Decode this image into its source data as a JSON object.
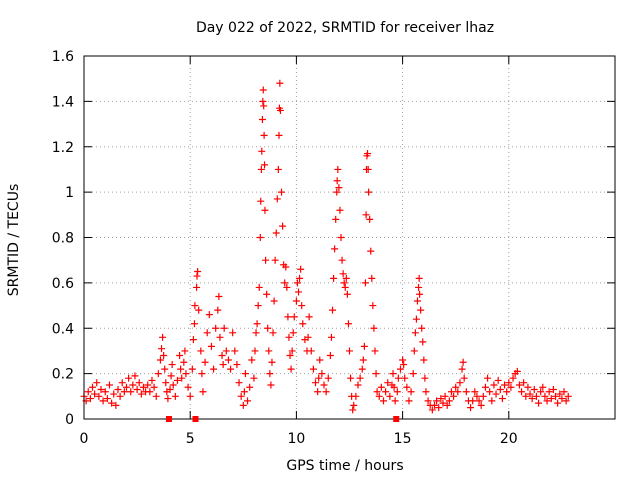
{
  "chart_data": {
    "type": "scatter",
    "title": "Day 022 of 2022, SRMTID for receiver lhaz",
    "xlabel": "GPS time / hours",
    "ylabel": "SRMTID / TECUs",
    "xlim": [
      0,
      25
    ],
    "ylim": [
      0,
      1.6
    ],
    "x_ticks": [
      0,
      5,
      10,
      15,
      20
    ],
    "x_tick_labels": [
      "0",
      "5",
      "10",
      "15",
      "20"
    ],
    "y_ticks": [
      0,
      0.2,
      0.4,
      0.6,
      0.8,
      1.0,
      1.2,
      1.4,
      1.6
    ],
    "y_tick_labels": [
      "0",
      "0.2",
      "0.4",
      "0.6",
      "0.8",
      "1",
      "1.2",
      "1.4",
      "1.6"
    ],
    "grid": true,
    "marker": "plus",
    "color": "#ff0000",
    "gap_markers_x": [
      4.0,
      5.25,
      14.7
    ],
    "series": [
      {
        "name": "SRMTID",
        "points": [
          [
            0.0,
            0.1
          ],
          [
            0.1,
            0.08
          ],
          [
            0.2,
            0.12
          ],
          [
            0.3,
            0.09
          ],
          [
            0.4,
            0.14
          ],
          [
            0.5,
            0.11
          ],
          [
            0.6,
            0.16
          ],
          [
            0.7,
            0.1
          ],
          [
            0.8,
            0.13
          ],
          [
            0.9,
            0.08
          ],
          [
            1.0,
            0.12
          ],
          [
            1.1,
            0.09
          ],
          [
            1.2,
            0.15
          ],
          [
            1.3,
            0.07
          ],
          [
            1.4,
            0.11
          ],
          [
            1.5,
            0.06
          ],
          [
            1.6,
            0.13
          ],
          [
            1.7,
            0.1
          ],
          [
            1.8,
            0.16
          ],
          [
            1.9,
            0.12
          ],
          [
            2.0,
            0.14
          ],
          [
            2.1,
            0.18
          ],
          [
            2.2,
            0.12
          ],
          [
            2.3,
            0.15
          ],
          [
            2.4,
            0.19
          ],
          [
            2.5,
            0.13
          ],
          [
            2.6,
            0.16
          ],
          [
            2.7,
            0.11
          ],
          [
            2.8,
            0.14
          ],
          [
            2.9,
            0.12
          ],
          [
            3.0,
            0.15
          ],
          [
            3.1,
            0.12
          ],
          [
            3.2,
            0.17
          ],
          [
            3.3,
            0.14
          ],
          [
            3.4,
            0.1
          ],
          [
            3.5,
            0.2
          ],
          [
            3.6,
            0.26
          ],
          [
            3.65,
            0.31
          ],
          [
            3.7,
            0.36
          ],
          [
            3.75,
            0.28
          ],
          [
            3.8,
            0.22
          ],
          [
            3.85,
            0.16
          ],
          [
            3.9,
            0.12
          ],
          [
            3.95,
            0.09
          ],
          [
            4.05,
            0.13
          ],
          [
            4.1,
            0.19
          ],
          [
            4.15,
            0.24
          ],
          [
            4.2,
            0.15
          ],
          [
            4.3,
            0.1
          ],
          [
            4.4,
            0.17
          ],
          [
            4.5,
            0.28
          ],
          [
            4.55,
            0.22
          ],
          [
            4.6,
            0.18
          ],
          [
            4.7,
            0.25
          ],
          [
            4.75,
            0.3
          ],
          [
            4.8,
            0.2
          ],
          [
            4.9,
            0.14
          ],
          [
            5.0,
            0.1
          ],
          [
            5.1,
            0.22
          ],
          [
            5.15,
            0.35
          ],
          [
            5.2,
            0.42
          ],
          [
            5.22,
            0.5
          ],
          [
            5.3,
            0.58
          ],
          [
            5.32,
            0.63
          ],
          [
            5.35,
            0.65
          ],
          [
            5.4,
            0.48
          ],
          [
            5.5,
            0.3
          ],
          [
            5.55,
            0.2
          ],
          [
            5.6,
            0.12
          ],
          [
            5.7,
            0.25
          ],
          [
            5.8,
            0.38
          ],
          [
            5.9,
            0.46
          ],
          [
            6.0,
            0.32
          ],
          [
            6.1,
            0.22
          ],
          [
            6.2,
            0.4
          ],
          [
            6.3,
            0.48
          ],
          [
            6.35,
            0.54
          ],
          [
            6.4,
            0.36
          ],
          [
            6.5,
            0.28
          ],
          [
            6.55,
            0.24
          ],
          [
            6.6,
            0.4
          ],
          [
            6.7,
            0.3
          ],
          [
            6.8,
            0.26
          ],
          [
            6.9,
            0.22
          ],
          [
            7.0,
            0.38
          ],
          [
            7.1,
            0.3
          ],
          [
            7.2,
            0.24
          ],
          [
            7.3,
            0.16
          ],
          [
            7.4,
            0.1
          ],
          [
            7.5,
            0.06
          ],
          [
            7.55,
            0.12
          ],
          [
            7.6,
            0.2
          ],
          [
            7.7,
            0.08
          ],
          [
            7.8,
            0.14
          ],
          [
            7.9,
            0.26
          ],
          [
            8.0,
            0.18
          ],
          [
            8.05,
            0.3
          ],
          [
            8.1,
            0.38
          ],
          [
            8.15,
            0.42
          ],
          [
            8.2,
            0.5
          ],
          [
            8.25,
            0.58
          ],
          [
            8.3,
            0.8
          ],
          [
            8.32,
            0.96
          ],
          [
            8.35,
            1.1
          ],
          [
            8.37,
            1.18
          ],
          [
            8.4,
            1.32
          ],
          [
            8.42,
            1.4
          ],
          [
            8.44,
            1.45
          ],
          [
            8.46,
            1.38
          ],
          [
            8.48,
            1.25
          ],
          [
            8.5,
            1.12
          ],
          [
            8.52,
            0.92
          ],
          [
            8.55,
            0.7
          ],
          [
            8.6,
            0.55
          ],
          [
            8.65,
            0.4
          ],
          [
            8.7,
            0.3
          ],
          [
            8.75,
            0.2
          ],
          [
            8.8,
            0.15
          ],
          [
            8.85,
            0.25
          ],
          [
            8.9,
            0.38
          ],
          [
            8.95,
            0.52
          ],
          [
            9.0,
            0.7
          ],
          [
            9.05,
            0.82
          ],
          [
            9.1,
            0.97
          ],
          [
            9.15,
            1.1
          ],
          [
            9.18,
            1.25
          ],
          [
            9.2,
            1.37
          ],
          [
            9.22,
            1.48
          ],
          [
            9.25,
            1.36
          ],
          [
            9.3,
            1.0
          ],
          [
            9.35,
            0.85
          ],
          [
            9.4,
            0.68
          ],
          [
            9.45,
            0.6
          ],
          [
            9.5,
            0.67
          ],
          [
            9.55,
            0.58
          ],
          [
            9.6,
            0.45
          ],
          [
            9.65,
            0.36
          ],
          [
            9.7,
            0.28
          ],
          [
            9.75,
            0.22
          ],
          [
            9.8,
            0.3
          ],
          [
            9.85,
            0.38
          ],
          [
            9.9,
            0.45
          ],
          [
            10.0,
            0.52
          ],
          [
            10.05,
            0.6
          ],
          [
            10.1,
            0.56
          ],
          [
            10.15,
            0.62
          ],
          [
            10.2,
            0.66
          ],
          [
            10.25,
            0.5
          ],
          [
            10.3,
            0.42
          ],
          [
            10.4,
            0.35
          ],
          [
            10.5,
            0.3
          ],
          [
            10.55,
            0.36
          ],
          [
            10.6,
            0.45
          ],
          [
            10.7,
            0.3
          ],
          [
            10.8,
            0.22
          ],
          [
            10.9,
            0.16
          ],
          [
            11.0,
            0.12
          ],
          [
            11.05,
            0.18
          ],
          [
            11.1,
            0.26
          ],
          [
            11.2,
            0.2
          ],
          [
            11.3,
            0.15
          ],
          [
            11.4,
            0.12
          ],
          [
            11.5,
            0.18
          ],
          [
            11.6,
            0.28
          ],
          [
            11.65,
            0.36
          ],
          [
            11.7,
            0.48
          ],
          [
            11.75,
            0.62
          ],
          [
            11.8,
            0.75
          ],
          [
            11.85,
            0.88
          ],
          [
            11.9,
            1.0
          ],
          [
            11.92,
            1.05
          ],
          [
            11.95,
            1.1
          ],
          [
            12.0,
            1.02
          ],
          [
            12.05,
            0.92
          ],
          [
            12.1,
            0.8
          ],
          [
            12.15,
            0.7
          ],
          [
            12.2,
            0.64
          ],
          [
            12.25,
            0.6
          ],
          [
            12.3,
            0.58
          ],
          [
            12.35,
            0.62
          ],
          [
            12.4,
            0.55
          ],
          [
            12.45,
            0.42
          ],
          [
            12.5,
            0.3
          ],
          [
            12.55,
            0.18
          ],
          [
            12.6,
            0.1
          ],
          [
            12.65,
            0.04
          ],
          [
            12.7,
            0.06
          ],
          [
            12.8,
            0.1
          ],
          [
            12.9,
            0.15
          ],
          [
            13.0,
            0.18
          ],
          [
            13.1,
            0.22
          ],
          [
            13.15,
            0.26
          ],
          [
            13.2,
            0.32
          ],
          [
            13.25,
            0.6
          ],
          [
            13.28,
            0.9
          ],
          [
            13.3,
            1.1
          ],
          [
            13.32,
            1.16
          ],
          [
            13.35,
            1.17
          ],
          [
            13.38,
            1.1
          ],
          [
            13.4,
            1.0
          ],
          [
            13.45,
            0.88
          ],
          [
            13.5,
            0.74
          ],
          [
            13.55,
            0.62
          ],
          [
            13.6,
            0.5
          ],
          [
            13.65,
            0.4
          ],
          [
            13.7,
            0.3
          ],
          [
            13.75,
            0.2
          ],
          [
            13.8,
            0.12
          ],
          [
            13.9,
            0.1
          ],
          [
            14.0,
            0.14
          ],
          [
            14.1,
            0.08
          ],
          [
            14.2,
            0.12
          ],
          [
            14.3,
            0.16
          ],
          [
            14.4,
            0.1
          ],
          [
            14.5,
            0.15
          ],
          [
            14.55,
            0.2
          ],
          [
            14.6,
            0.14
          ],
          [
            14.65,
            0.08
          ],
          [
            14.75,
            0.12
          ],
          [
            14.8,
            0.18
          ],
          [
            14.9,
            0.22
          ],
          [
            15.0,
            0.26
          ],
          [
            15.05,
            0.24
          ],
          [
            15.1,
            0.18
          ],
          [
            15.2,
            0.14
          ],
          [
            15.3,
            0.08
          ],
          [
            15.4,
            0.12
          ],
          [
            15.5,
            0.2
          ],
          [
            15.55,
            0.3
          ],
          [
            15.6,
            0.38
          ],
          [
            15.65,
            0.44
          ],
          [
            15.7,
            0.52
          ],
          [
            15.75,
            0.58
          ],
          [
            15.78,
            0.62
          ],
          [
            15.8,
            0.55
          ],
          [
            15.85,
            0.48
          ],
          [
            15.9,
            0.4
          ],
          [
            15.95,
            0.34
          ],
          [
            16.0,
            0.26
          ],
          [
            16.05,
            0.18
          ],
          [
            16.1,
            0.12
          ],
          [
            16.2,
            0.08
          ],
          [
            16.3,
            0.06
          ],
          [
            16.4,
            0.04
          ],
          [
            16.5,
            0.06
          ],
          [
            16.6,
            0.08
          ],
          [
            16.7,
            0.05
          ],
          [
            16.8,
            0.09
          ],
          [
            16.9,
            0.07
          ],
          [
            17.0,
            0.1
          ],
          [
            17.1,
            0.06
          ],
          [
            17.2,
            0.08
          ],
          [
            17.3,
            0.12
          ],
          [
            17.4,
            0.1
          ],
          [
            17.5,
            0.14
          ],
          [
            17.6,
            0.12
          ],
          [
            17.7,
            0.16
          ],
          [
            17.8,
            0.22
          ],
          [
            17.85,
            0.25
          ],
          [
            17.9,
            0.18
          ],
          [
            18.0,
            0.12
          ],
          [
            18.1,
            0.08
          ],
          [
            18.2,
            0.05
          ],
          [
            18.3,
            0.08
          ],
          [
            18.4,
            0.12
          ],
          [
            18.5,
            0.1
          ],
          [
            18.6,
            0.08
          ],
          [
            18.7,
            0.06
          ],
          [
            18.8,
            0.1
          ],
          [
            18.9,
            0.14
          ],
          [
            19.0,
            0.18
          ],
          [
            19.1,
            0.12
          ],
          [
            19.2,
            0.08
          ],
          [
            19.3,
            0.15
          ],
          [
            19.4,
            0.11
          ],
          [
            19.5,
            0.17
          ],
          [
            19.6,
            0.13
          ],
          [
            19.7,
            0.09
          ],
          [
            19.8,
            0.15
          ],
          [
            19.9,
            0.12
          ],
          [
            20.0,
            0.16
          ],
          [
            20.1,
            0.14
          ],
          [
            20.2,
            0.18
          ],
          [
            20.3,
            0.2
          ],
          [
            20.4,
            0.21
          ],
          [
            20.5,
            0.15
          ],
          [
            20.6,
            0.12
          ],
          [
            20.7,
            0.16
          ],
          [
            20.8,
            0.1
          ],
          [
            20.9,
            0.14
          ],
          [
            21.0,
            0.11
          ],
          [
            21.1,
            0.09
          ],
          [
            21.2,
            0.13
          ],
          [
            21.3,
            0.1
          ],
          [
            21.4,
            0.07
          ],
          [
            21.5,
            0.12
          ],
          [
            21.6,
            0.14
          ],
          [
            21.7,
            0.1
          ],
          [
            21.8,
            0.08
          ],
          [
            21.9,
            0.12
          ],
          [
            22.0,
            0.09
          ],
          [
            22.1,
            0.13
          ],
          [
            22.2,
            0.1
          ],
          [
            22.3,
            0.07
          ],
          [
            22.4,
            0.11
          ],
          [
            22.5,
            0.09
          ],
          [
            22.6,
            0.12
          ],
          [
            22.7,
            0.08
          ],
          [
            22.8,
            0.1
          ]
        ]
      }
    ]
  }
}
